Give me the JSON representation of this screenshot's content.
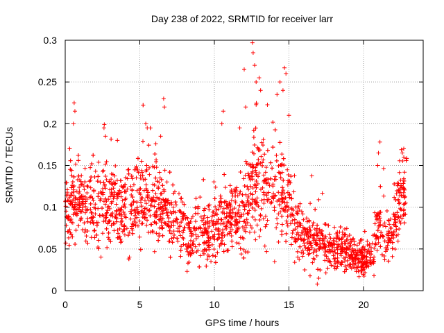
{
  "chart_data": {
    "type": "scatter",
    "title": "Day 238 of 2022, SRMTID for receiver larr",
    "xlabel": "GPS time / hours",
    "ylabel": "SRMTID / TECUs",
    "xlim": [
      0,
      24
    ],
    "ylim": [
      0,
      0.3
    ],
    "x_ticks": [
      0,
      5,
      10,
      15,
      20
    ],
    "x_tick_labels": [
      "0",
      "5",
      "10",
      "15",
      "20"
    ],
    "y_ticks": [
      0,
      0.05,
      0.1,
      0.15,
      0.2,
      0.25,
      0.3
    ],
    "y_tick_labels": [
      "0",
      "0.05",
      "0.1",
      "0.15",
      "0.2",
      "0.25",
      "0.3"
    ],
    "grid": true,
    "marker": "+",
    "color": "#ff0000",
    "series": [
      {
        "points_per_hour": 120,
        "x_range": [
          0,
          22.9
        ],
        "profile": [
          {
            "x": 0.0,
            "y": 0.09,
            "spread": 0.02
          },
          {
            "x": 0.5,
            "y": 0.105,
            "spread": 0.03
          },
          {
            "x": 1.0,
            "y": 0.11,
            "spread": 0.03
          },
          {
            "x": 2.0,
            "y": 0.1,
            "spread": 0.03
          },
          {
            "x": 3.0,
            "y": 0.105,
            "spread": 0.03
          },
          {
            "x": 4.0,
            "y": 0.1,
            "spread": 0.03
          },
          {
            "x": 5.0,
            "y": 0.11,
            "spread": 0.03
          },
          {
            "x": 6.0,
            "y": 0.11,
            "spread": 0.03
          },
          {
            "x": 7.0,
            "y": 0.09,
            "spread": 0.025
          },
          {
            "x": 8.0,
            "y": 0.07,
            "spread": 0.02
          },
          {
            "x": 9.0,
            "y": 0.065,
            "spread": 0.02
          },
          {
            "x": 10.0,
            "y": 0.075,
            "spread": 0.025
          },
          {
            "x": 11.0,
            "y": 0.09,
            "spread": 0.025
          },
          {
            "x": 12.0,
            "y": 0.085,
            "spread": 0.025
          },
          {
            "x": 12.5,
            "y": 0.12,
            "spread": 0.04
          },
          {
            "x": 13.0,
            "y": 0.13,
            "spread": 0.04
          },
          {
            "x": 14.0,
            "y": 0.12,
            "spread": 0.035
          },
          {
            "x": 15.0,
            "y": 0.11,
            "spread": 0.03
          },
          {
            "x": 15.5,
            "y": 0.07,
            "spread": 0.02
          },
          {
            "x": 16.0,
            "y": 0.06,
            "spread": 0.02
          },
          {
            "x": 17.0,
            "y": 0.06,
            "spread": 0.02
          },
          {
            "x": 18.0,
            "y": 0.05,
            "spread": 0.015
          },
          {
            "x": 19.0,
            "y": 0.045,
            "spread": 0.015
          },
          {
            "x": 20.0,
            "y": 0.035,
            "spread": 0.012
          },
          {
            "x": 20.5,
            "y": 0.045,
            "spread": 0.015
          },
          {
            "x": 21.0,
            "y": 0.08,
            "spread": 0.025
          },
          {
            "x": 21.5,
            "y": 0.06,
            "spread": 0.02
          },
          {
            "x": 22.0,
            "y": 0.07,
            "spread": 0.02
          },
          {
            "x": 22.5,
            "y": 0.11,
            "spread": 0.03
          },
          {
            "x": 22.9,
            "y": 0.12,
            "spread": 0.03
          }
        ],
        "outliers": [
          {
            "x": 0.6,
            "y": 0.225
          },
          {
            "x": 0.65,
            "y": 0.215
          },
          {
            "x": 0.55,
            "y": 0.2
          },
          {
            "x": 2.6,
            "y": 0.195
          },
          {
            "x": 2.7,
            "y": 0.185
          },
          {
            "x": 3.5,
            "y": 0.18
          },
          {
            "x": 5.4,
            "y": 0.2
          },
          {
            "x": 5.5,
            "y": 0.195
          },
          {
            "x": 6.6,
            "y": 0.23
          },
          {
            "x": 6.65,
            "y": 0.22
          },
          {
            "x": 6.4,
            "y": 0.185
          },
          {
            "x": 10.6,
            "y": 0.215
          },
          {
            "x": 10.5,
            "y": 0.2
          },
          {
            "x": 11.7,
            "y": 0.195
          },
          {
            "x": 12.0,
            "y": 0.265
          },
          {
            "x": 12.1,
            "y": 0.22
          },
          {
            "x": 12.55,
            "y": 0.297
          },
          {
            "x": 12.6,
            "y": 0.285
          },
          {
            "x": 12.7,
            "y": 0.27
          },
          {
            "x": 12.8,
            "y": 0.25
          },
          {
            "x": 13.0,
            "y": 0.255
          },
          {
            "x": 13.1,
            "y": 0.24
          },
          {
            "x": 14.4,
            "y": 0.25
          },
          {
            "x": 14.7,
            "y": 0.267
          },
          {
            "x": 14.8,
            "y": 0.26
          },
          {
            "x": 14.6,
            "y": 0.24
          },
          {
            "x": 14.2,
            "y": 0.235
          },
          {
            "x": 15.0,
            "y": 0.21
          },
          {
            "x": 17.0,
            "y": 0.015
          },
          {
            "x": 16.9,
            "y": 0.008
          },
          {
            "x": 20.7,
            "y": 0.018
          },
          {
            "x": 21.1,
            "y": 0.178
          },
          {
            "x": 21.0,
            "y": 0.165
          },
          {
            "x": 20.95,
            "y": 0.15
          },
          {
            "x": 22.6,
            "y": 0.165
          },
          {
            "x": 22.7,
            "y": 0.16
          }
        ]
      }
    ]
  }
}
